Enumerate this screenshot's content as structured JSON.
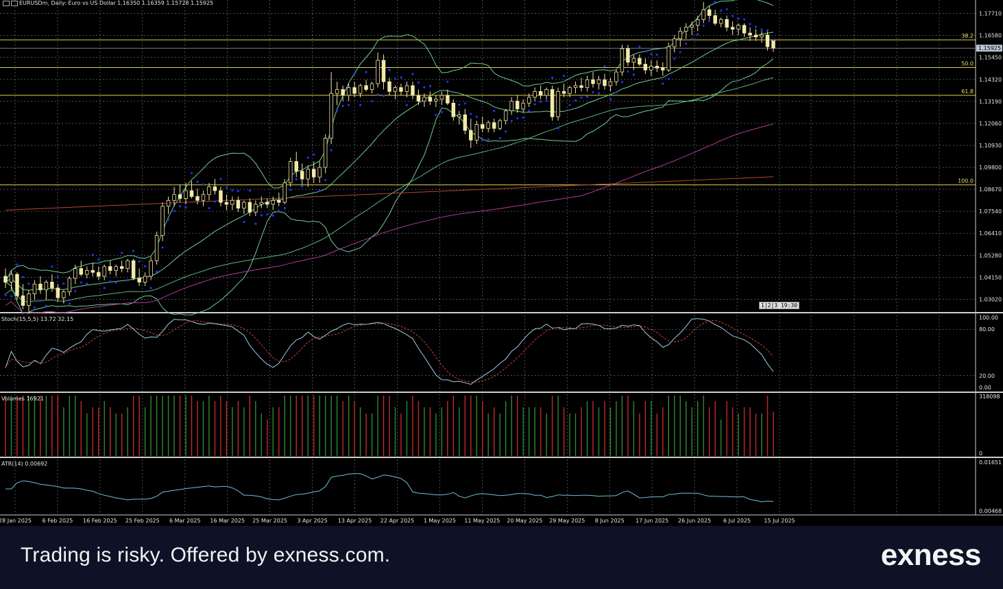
{
  "window": {
    "title": "EURUSDm, Daily:  Euro vs US Dollar  1.16350 1.16359 1.15728 1.15925"
  },
  "colors": {
    "bull_candle": "#f3e9a8",
    "bear_candle": "#f3e9a8",
    "bollinger": "#6fcf97",
    "ma_slow": "#b03a9a",
    "ma_200": "#b2463a",
    "sar": "#2233ff",
    "fib": "#e0d24a",
    "grid": "#d8d8d8",
    "stoch_main": "#9fd0e8",
    "stoch_signal": "#d04040",
    "atr": "#6fc0d8",
    "vol_up": "#2e8b2e",
    "vol_down": "#c42a2a"
  },
  "price_axis": {
    "labels": [
      "1.17710",
      "1.16580",
      "1.15450",
      "1.14320",
      "1.13190",
      "1.12060",
      "1.10930",
      "1.09800",
      "1.08670",
      "1.07540",
      "1.06410",
      "1.05280",
      "1.04150",
      "1.03020"
    ],
    "current_price": "1.15925",
    "fib_levels": [
      {
        "label": "38.2",
        "price": 1.1635
      },
      {
        "label": "50.0",
        "price": 1.1493
      },
      {
        "label": "61.8",
        "price": 1.135
      },
      {
        "label": "100.0",
        "price": 1.089
      }
    ]
  },
  "time_axis": {
    "labels": [
      "28 Jan 2025",
      "6 Feb 2025",
      "16 Feb 2025",
      "25 Feb 2025",
      "6 Mar 2025",
      "16 Mar 2025",
      "25 Mar 2025",
      "3 Apr 2025",
      "13 Apr 2025",
      "22 Apr 2025",
      "1 May 2025",
      "11 May 2025",
      "20 May 2025",
      "29 May 2025",
      "8 Jun 2025",
      "17 Jun 2025",
      "26 Jun 2025",
      "6 Jul 2025",
      "15 Jul 2025"
    ]
  },
  "timeframe_buttons": [
    "1",
    "2",
    "3"
  ],
  "time_badge": "19:30",
  "stochastic": {
    "label": "Stoch(15,5,5) 13.72 32.15",
    "axis": [
      "100.00",
      "80.00",
      "20.00",
      "0.00"
    ]
  },
  "volumes": {
    "label": "Volumes 16921",
    "axis": [
      "318098",
      "0"
    ]
  },
  "atr": {
    "label": "ATR(14) 0.00692",
    "axis": [
      "0.01651",
      "0.00468"
    ]
  },
  "chart_data": {
    "type": "candlestick",
    "symbol": "EURUSDm",
    "timeframe": "Daily",
    "ylim": [
      1.024,
      1.184
    ],
    "ohlc": [
      [
        1.042,
        1.046,
        1.036,
        1.039
      ],
      [
        1.039,
        1.045,
        1.035,
        1.043
      ],
      [
        1.043,
        1.044,
        1.03,
        1.032
      ],
      [
        1.032,
        1.038,
        1.025,
        1.027
      ],
      [
        1.027,
        1.035,
        1.024,
        1.033
      ],
      [
        1.033,
        1.04,
        1.03,
        1.038
      ],
      [
        1.038,
        1.042,
        1.033,
        1.035
      ],
      [
        1.035,
        1.04,
        1.03,
        1.039
      ],
      [
        1.039,
        1.043,
        1.034,
        1.036
      ],
      [
        1.036,
        1.038,
        1.029,
        1.031
      ],
      [
        1.031,
        1.035,
        1.028,
        1.034
      ],
      [
        1.034,
        1.042,
        1.032,
        1.041
      ],
      [
        1.041,
        1.048,
        1.038,
        1.046
      ],
      [
        1.046,
        1.05,
        1.042,
        1.043
      ],
      [
        1.043,
        1.047,
        1.041,
        1.045
      ],
      [
        1.045,
        1.049,
        1.042,
        1.044
      ],
      [
        1.044,
        1.047,
        1.04,
        1.042
      ],
      [
        1.042,
        1.048,
        1.04,
        1.047
      ],
      [
        1.047,
        1.05,
        1.043,
        1.045
      ],
      [
        1.045,
        1.048,
        1.042,
        1.047
      ],
      [
        1.047,
        1.05,
        1.044,
        1.046
      ],
      [
        1.046,
        1.051,
        1.044,
        1.05
      ],
      [
        1.05,
        1.051,
        1.04,
        1.041
      ],
      [
        1.041,
        1.046,
        1.037,
        1.039
      ],
      [
        1.039,
        1.044,
        1.037,
        1.042
      ],
      [
        1.042,
        1.052,
        1.04,
        1.05
      ],
      [
        1.05,
        1.065,
        1.048,
        1.063
      ],
      [
        1.063,
        1.08,
        1.06,
        1.078
      ],
      [
        1.078,
        1.083,
        1.074,
        1.081
      ],
      [
        1.081,
        1.088,
        1.078,
        1.084
      ],
      [
        1.084,
        1.089,
        1.08,
        1.082
      ],
      [
        1.082,
        1.09,
        1.079,
        1.086
      ],
      [
        1.086,
        1.091,
        1.082,
        1.083
      ],
      [
        1.083,
        1.087,
        1.079,
        1.081
      ],
      [
        1.081,
        1.086,
        1.078,
        1.084
      ],
      [
        1.084,
        1.09,
        1.081,
        1.088
      ],
      [
        1.088,
        1.092,
        1.084,
        1.086
      ],
      [
        1.086,
        1.088,
        1.078,
        1.08
      ],
      [
        1.08,
        1.084,
        1.076,
        1.079
      ],
      [
        1.079,
        1.083,
        1.076,
        1.081
      ],
      [
        1.081,
        1.083,
        1.075,
        1.077
      ],
      [
        1.077,
        1.081,
        1.074,
        1.08
      ],
      [
        1.08,
        1.082,
        1.073,
        1.075
      ],
      [
        1.075,
        1.081,
        1.073,
        1.079
      ],
      [
        1.079,
        1.083,
        1.077,
        1.08
      ],
      [
        1.08,
        1.082,
        1.077,
        1.079
      ],
      [
        1.079,
        1.083,
        1.076,
        1.081
      ],
      [
        1.081,
        1.085,
        1.078,
        1.08
      ],
      [
        1.08,
        1.092,
        1.079,
        1.09
      ],
      [
        1.09,
        1.103,
        1.088,
        1.101
      ],
      [
        1.101,
        1.106,
        1.093,
        1.096
      ],
      [
        1.096,
        1.1,
        1.089,
        1.092
      ],
      [
        1.092,
        1.099,
        1.088,
        1.097
      ],
      [
        1.097,
        1.101,
        1.09,
        1.093
      ],
      [
        1.093,
        1.101,
        1.09,
        1.098
      ],
      [
        1.098,
        1.115,
        1.095,
        1.113
      ],
      [
        1.113,
        1.147,
        1.11,
        1.136
      ],
      [
        1.136,
        1.142,
        1.13,
        1.138
      ],
      [
        1.138,
        1.14,
        1.132,
        1.135
      ],
      [
        1.135,
        1.141,
        1.132,
        1.139
      ],
      [
        1.139,
        1.142,
        1.134,
        1.136
      ],
      [
        1.136,
        1.141,
        1.134,
        1.14
      ],
      [
        1.14,
        1.143,
        1.137,
        1.138
      ],
      [
        1.138,
        1.142,
        1.136,
        1.141
      ],
      [
        1.141,
        1.157,
        1.139,
        1.153
      ],
      [
        1.153,
        1.156,
        1.138,
        1.142
      ],
      [
        1.142,
        1.144,
        1.135,
        1.137
      ],
      [
        1.137,
        1.14,
        1.133,
        1.139
      ],
      [
        1.139,
        1.141,
        1.135,
        1.137
      ],
      [
        1.137,
        1.142,
        1.134,
        1.14
      ],
      [
        1.14,
        1.142,
        1.133,
        1.135
      ],
      [
        1.135,
        1.138,
        1.13,
        1.132
      ],
      [
        1.132,
        1.136,
        1.129,
        1.134
      ],
      [
        1.134,
        1.137,
        1.13,
        1.132
      ],
      [
        1.132,
        1.135,
        1.129,
        1.133
      ],
      [
        1.133,
        1.137,
        1.13,
        1.135
      ],
      [
        1.135,
        1.138,
        1.13,
        1.131
      ],
      [
        1.131,
        1.133,
        1.122,
        1.124
      ],
      [
        1.124,
        1.127,
        1.12,
        1.125
      ],
      [
        1.125,
        1.128,
        1.115,
        1.117
      ],
      [
        1.117,
        1.123,
        1.108,
        1.112
      ],
      [
        1.112,
        1.122,
        1.11,
        1.12
      ],
      [
        1.12,
        1.124,
        1.116,
        1.118
      ],
      [
        1.118,
        1.122,
        1.116,
        1.121
      ],
      [
        1.121,
        1.123,
        1.116,
        1.118
      ],
      [
        1.118,
        1.123,
        1.117,
        1.122
      ],
      [
        1.122,
        1.128,
        1.12,
        1.127
      ],
      [
        1.127,
        1.134,
        1.125,
        1.132
      ],
      [
        1.132,
        1.135,
        1.126,
        1.128
      ],
      [
        1.128,
        1.133,
        1.126,
        1.131
      ],
      [
        1.131,
        1.136,
        1.129,
        1.134
      ],
      [
        1.134,
        1.139,
        1.132,
        1.137
      ],
      [
        1.137,
        1.14,
        1.133,
        1.135
      ],
      [
        1.135,
        1.139,
        1.133,
        1.138
      ],
      [
        1.138,
        1.14,
        1.122,
        1.124
      ],
      [
        1.124,
        1.139,
        1.122,
        1.137
      ],
      [
        1.137,
        1.141,
        1.134,
        1.136
      ],
      [
        1.136,
        1.14,
        1.134,
        1.139
      ],
      [
        1.139,
        1.142,
        1.136,
        1.14
      ],
      [
        1.14,
        1.144,
        1.137,
        1.139
      ],
      [
        1.139,
        1.145,
        1.137,
        1.143
      ],
      [
        1.143,
        1.147,
        1.139,
        1.141
      ],
      [
        1.141,
        1.145,
        1.138,
        1.143
      ],
      [
        1.143,
        1.146,
        1.138,
        1.14
      ],
      [
        1.14,
        1.144,
        1.137,
        1.142
      ],
      [
        1.142,
        1.148,
        1.14,
        1.147
      ],
      [
        1.147,
        1.161,
        1.145,
        1.159
      ],
      [
        1.159,
        1.161,
        1.15,
        1.152
      ],
      [
        1.152,
        1.156,
        1.148,
        1.154
      ],
      [
        1.154,
        1.156,
        1.15,
        1.151
      ],
      [
        1.151,
        1.154,
        1.146,
        1.148
      ],
      [
        1.148,
        1.153,
        1.145,
        1.15
      ],
      [
        1.15,
        1.153,
        1.147,
        1.149
      ],
      [
        1.149,
        1.152,
        1.145,
        1.148
      ],
      [
        1.148,
        1.162,
        1.147,
        1.16
      ],
      [
        1.16,
        1.166,
        1.157,
        1.164
      ],
      [
        1.164,
        1.17,
        1.16,
        1.168
      ],
      [
        1.168,
        1.172,
        1.164,
        1.17
      ],
      [
        1.17,
        1.173,
        1.166,
        1.171
      ],
      [
        1.171,
        1.176,
        1.168,
        1.174
      ],
      [
        1.174,
        1.183,
        1.172,
        1.179
      ],
      [
        1.179,
        1.181,
        1.174,
        1.176
      ],
      [
        1.176,
        1.179,
        1.171,
        1.172
      ],
      [
        1.172,
        1.175,
        1.17,
        1.174
      ],
      [
        1.174,
        1.176,
        1.168,
        1.17
      ],
      [
        1.17,
        1.173,
        1.166,
        1.169
      ],
      [
        1.169,
        1.172,
        1.166,
        1.171
      ],
      [
        1.171,
        1.172,
        1.165,
        1.167
      ],
      [
        1.167,
        1.17,
        1.163,
        1.166
      ],
      [
        1.166,
        1.169,
        1.163,
        1.165
      ],
      [
        1.165,
        1.168,
        1.162,
        1.166
      ],
      [
        1.166,
        1.168,
        1.158,
        1.16
      ],
      [
        1.1635,
        1.1636,
        1.1573,
        1.15925
      ]
    ]
  }
}
